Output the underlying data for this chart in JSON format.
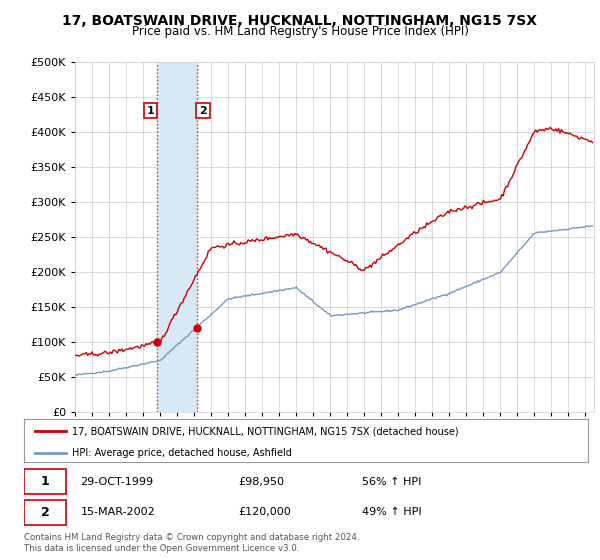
{
  "title": "17, BOATSWAIN DRIVE, HUCKNALL, NOTTINGHAM, NG15 7SX",
  "subtitle": "Price paid vs. HM Land Registry's House Price Index (HPI)",
  "legend_line1": "17, BOATSWAIN DRIVE, HUCKNALL, NOTTINGHAM, NG15 7SX (detached house)",
  "legend_line2": "HPI: Average price, detached house, Ashfield",
  "transaction1_date": "29-OCT-1999",
  "transaction1_price": "£98,950",
  "transaction1_hpi": "56% ↑ HPI",
  "transaction2_date": "15-MAR-2002",
  "transaction2_price": "£120,000",
  "transaction2_hpi": "49% ↑ HPI",
  "footnote": "Contains HM Land Registry data © Crown copyright and database right 2024.\nThis data is licensed under the Open Government Licence v3.0.",
  "ylim": [
    0,
    500000
  ],
  "yticks": [
    0,
    50000,
    100000,
    150000,
    200000,
    250000,
    300000,
    350000,
    400000,
    450000,
    500000
  ],
  "red_color": "#cc0000",
  "blue_color": "#7399c6",
  "shading_color": "#d8e8f5",
  "grid_color": "#cccccc",
  "background_color": "#ffffff",
  "t1_year": 1999.79,
  "t2_year": 2002.17,
  "t1_price": 98950,
  "t2_price": 120000
}
